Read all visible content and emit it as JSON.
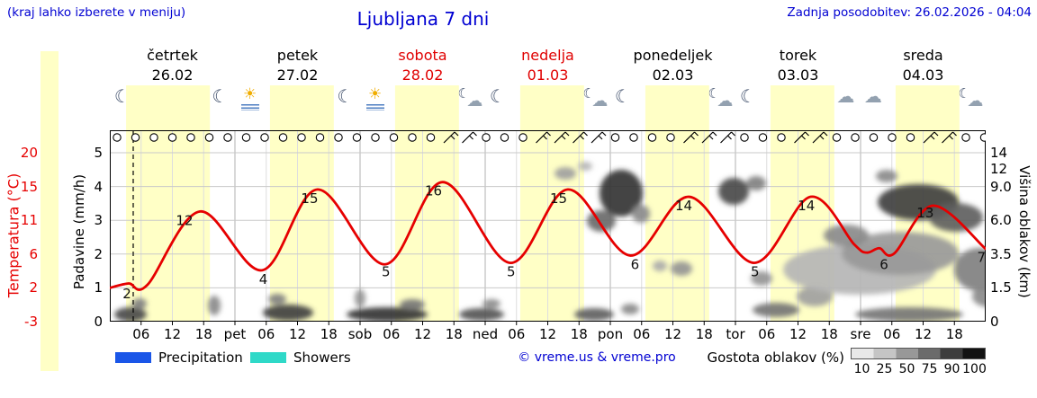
{
  "header": {
    "hint": "(kraj lahko izberete v meniju)",
    "title": "Ljubljana 7 dni",
    "updated": "Zadnja posodobitev: 26.02.2026 - 04:04"
  },
  "axes": {
    "left_temp": {
      "title": "Temperatura (°C)",
      "ticks": [
        "20",
        "15",
        "11",
        "6",
        "2",
        "-3"
      ]
    },
    "left_precip": {
      "title": "Padavine (mm/h)",
      "ticks": [
        "5",
        "4",
        "3",
        "2",
        "1",
        "0"
      ]
    },
    "right_cloud": {
      "title": "Višina oblakov (km)",
      "ticks": [
        "14",
        "12",
        "9.0",
        "6.0",
        "3.5",
        "1.5",
        "0"
      ]
    }
  },
  "days": [
    {
      "name": "četrtek",
      "date": "26.02",
      "highlight": false
    },
    {
      "name": "petek",
      "date": "27.02",
      "highlight": false
    },
    {
      "name": "sobota",
      "date": "28.02",
      "highlight": true
    },
    {
      "name": "nedelja",
      "date": "01.03",
      "highlight": true
    },
    {
      "name": "ponedeljek",
      "date": "02.03",
      "highlight": false
    },
    {
      "name": "torek",
      "date": "03.03",
      "highlight": false
    },
    {
      "name": "sreda",
      "date": "04.03",
      "highlight": false
    }
  ],
  "x_ticks": [
    {
      "t": 0.25,
      "label": "06"
    },
    {
      "t": 0.5,
      "label": "12"
    },
    {
      "t": 0.75,
      "label": "18"
    },
    {
      "t": 1,
      "label": "pet"
    },
    {
      "t": 1.25,
      "label": "06"
    },
    {
      "t": 1.5,
      "label": "12"
    },
    {
      "t": 1.75,
      "label": "18"
    },
    {
      "t": 2,
      "label": "sob"
    },
    {
      "t": 2.25,
      "label": "06"
    },
    {
      "t": 2.5,
      "label": "12"
    },
    {
      "t": 2.75,
      "label": "18"
    },
    {
      "t": 3,
      "label": "ned"
    },
    {
      "t": 3.25,
      "label": "06"
    },
    {
      "t": 3.5,
      "label": "12"
    },
    {
      "t": 3.75,
      "label": "18"
    },
    {
      "t": 4,
      "label": "pon"
    },
    {
      "t": 4.25,
      "label": "06"
    },
    {
      "t": 4.5,
      "label": "12"
    },
    {
      "t": 4.75,
      "label": "18"
    },
    {
      "t": 5,
      "label": "tor"
    },
    {
      "t": 5.25,
      "label": "06"
    },
    {
      "t": 5.5,
      "label": "12"
    },
    {
      "t": 5.75,
      "label": "18"
    },
    {
      "t": 6,
      "label": "sre"
    },
    {
      "t": 6.25,
      "label": "06"
    },
    {
      "t": 6.5,
      "label": "12"
    },
    {
      "t": 6.75,
      "label": "18"
    }
  ],
  "legend": {
    "precipitation": "Precipitation",
    "showers": "Showers",
    "credit": "© vreme.us & vreme.pro",
    "cloud_density": "Gostota oblakov (%)",
    "density_ticks": [
      "10",
      "25",
      "50",
      "75",
      "90",
      "100"
    ],
    "density_colors": [
      "#e8e8e8",
      "#c5c5c5",
      "#989898",
      "#6b6b6b",
      "#3d3d3d",
      "#121212"
    ]
  },
  "colors": {
    "header_text": "#0000d2",
    "temp_curve": "#e60000",
    "weekend": "#e00000",
    "day_band": "#ffffc6",
    "precipitation": "#1a56e8",
    "showers": "#2fd9c8"
  },
  "icon_glyphs": {
    "moon": "☾",
    "sun": "☀",
    "cloud": "☁"
  },
  "chart_data": {
    "type": "line",
    "title": "Ljubljana 7 dni",
    "x_unit": "days (0 = čet 26.02 00:00 … 7 = sre 04.03 24:00)",
    "temp_axis_range": [
      -3,
      20
    ],
    "precip_axis_range": [
      0,
      5
    ],
    "cloud_height_km_ticks": [
      0,
      1.5,
      3.5,
      6.0,
      9.0,
      12,
      14
    ],
    "now_t": 0.187,
    "temperature_c": {
      "points": [
        [
          0,
          1.6
        ],
        [
          0.15,
          2.2
        ],
        [
          0.3,
          2.0
        ],
        [
          0.72,
          12
        ],
        [
          1.22,
          4.0
        ],
        [
          1.66,
          15
        ],
        [
          2.2,
          4.8
        ],
        [
          2.66,
          16
        ],
        [
          3.2,
          5.0
        ],
        [
          3.66,
          15
        ],
        [
          4.16,
          6.0
        ],
        [
          4.63,
          14
        ],
        [
          5.15,
          5.0
        ],
        [
          5.6,
          14
        ],
        [
          5.95,
          7.5
        ],
        [
          6.05,
          6.4
        ],
        [
          6.15,
          7.0
        ],
        [
          6.27,
          6.3
        ],
        [
          6.58,
          12.8
        ],
        [
          7,
          6.9
        ]
      ]
    },
    "temp_labels": [
      [
        0.18,
        2
      ],
      [
        0.64,
        12
      ],
      [
        1.27,
        4
      ],
      [
        1.64,
        15
      ],
      [
        2.25,
        5
      ],
      [
        2.63,
        16
      ],
      [
        3.25,
        5
      ],
      [
        3.63,
        15
      ],
      [
        4.24,
        6
      ],
      [
        4.63,
        14
      ],
      [
        5.2,
        5
      ],
      [
        5.61,
        14
      ],
      [
        6.23,
        6
      ],
      [
        6.56,
        13
      ],
      [
        7,
        7
      ]
    ],
    "daylight_bands": [
      [
        0.13,
        0.8
      ],
      [
        1.28,
        1.79
      ],
      [
        2.28,
        2.79
      ],
      [
        3.28,
        3.79
      ],
      [
        4.28,
        4.79
      ],
      [
        5.28,
        5.79
      ],
      [
        6.28,
        6.79
      ]
    ],
    "weather_icons": [
      {
        "t": 0.1,
        "type": "moon"
      },
      {
        "t": 0.38,
        "type": "sunfog"
      },
      {
        "t": 0.62,
        "type": "sun"
      },
      {
        "t": 0.88,
        "type": "moon"
      },
      {
        "t": 1.12,
        "type": "sunfog"
      },
      {
        "t": 1.38,
        "type": "sunfog"
      },
      {
        "t": 1.62,
        "type": "sun"
      },
      {
        "t": 1.88,
        "type": "moon"
      },
      {
        "t": 2.12,
        "type": "sunfog"
      },
      {
        "t": 2.38,
        "type": "sunfog"
      },
      {
        "t": 2.62,
        "type": "sun"
      },
      {
        "t": 2.88,
        "type": "cloudmoon"
      },
      {
        "t": 3.1,
        "type": "moon"
      },
      {
        "t": 3.38,
        "type": "sunfog"
      },
      {
        "t": 3.62,
        "type": "cloudsun"
      },
      {
        "t": 3.88,
        "type": "cloudmoon"
      },
      {
        "t": 4.1,
        "type": "moon"
      },
      {
        "t": 4.38,
        "type": "cloudsun"
      },
      {
        "t": 4.62,
        "type": "cloudsun"
      },
      {
        "t": 4.88,
        "type": "cloudmoon"
      },
      {
        "t": 5.1,
        "type": "moon"
      },
      {
        "t": 5.38,
        "type": "cloudsun"
      },
      {
        "t": 5.62,
        "type": "cloud"
      },
      {
        "t": 5.88,
        "type": "cloud"
      },
      {
        "t": 6.1,
        "type": "cloud"
      },
      {
        "t": 6.38,
        "type": "cloudsun"
      },
      {
        "t": 6.62,
        "type": "cloud"
      },
      {
        "t": 6.88,
        "type": "cloudmoon"
      }
    ],
    "wind_symbols": [
      "calm",
      "calm",
      "calm",
      "calm",
      "calm",
      "calm",
      "calm",
      "calm",
      "calm",
      "calm",
      "calm",
      "calm",
      "calm",
      "calm",
      "calm",
      "calm",
      "calm",
      "calm",
      "barb",
      "barb",
      "calm",
      "calm",
      "calm",
      "barb",
      "barb",
      "barb",
      "barb",
      "calm",
      "calm",
      "calm",
      "calm",
      "barb",
      "barb",
      "barb",
      "calm",
      "calm",
      "calm",
      "barb",
      "barb",
      "calm",
      "calm",
      "calm",
      "calm",
      "calm",
      "barb",
      "barb",
      "calm",
      "calm"
    ],
    "clouds": [
      [
        23,
        255,
        18,
        8,
        75
      ],
      [
        33,
        243,
        8,
        6,
        50
      ],
      [
        116,
        245,
        7,
        11,
        45
      ],
      [
        198,
        253,
        28,
        9,
        80
      ],
      [
        186,
        238,
        10,
        6,
        50
      ],
      [
        278,
        237,
        6,
        10,
        40
      ],
      [
        308,
        255,
        45,
        8,
        85
      ],
      [
        336,
        244,
        14,
        6,
        55
      ],
      [
        413,
        255,
        25,
        7,
        70
      ],
      [
        424,
        243,
        10,
        5,
        45
      ],
      [
        538,
        255,
        22,
        7,
        65
      ],
      [
        578,
        249,
        10,
        6,
        45
      ],
      [
        506,
        98,
        12,
        7,
        35
      ],
      [
        528,
        90,
        8,
        5,
        25
      ],
      [
        568,
        120,
        24,
        26,
        85
      ],
      [
        546,
        151,
        16,
        12,
        60
      ],
      [
        590,
        143,
        10,
        10,
        45
      ],
      [
        635,
        204,
        12,
        8,
        40
      ],
      [
        611,
        201,
        8,
        6,
        30
      ],
      [
        693,
        118,
        17,
        15,
        75
      ],
      [
        718,
        109,
        11,
        8,
        50
      ],
      [
        724,
        215,
        12,
        8,
        40
      ],
      [
        740,
        250,
        26,
        8,
        55
      ],
      [
        783,
        235,
        20,
        11,
        35
      ],
      [
        833,
        205,
        85,
        28,
        25
      ],
      [
        878,
        187,
        65,
        24,
        38
      ],
      [
        818,
        167,
        25,
        12,
        45
      ],
      [
        898,
        130,
        45,
        20,
        80
      ],
      [
        940,
        147,
        30,
        16,
        65
      ],
      [
        966,
        205,
        28,
        24,
        50
      ],
      [
        888,
        255,
        60,
        8,
        55
      ],
      [
        863,
        101,
        12,
        7,
        45
      ],
      [
        978,
        235,
        20,
        12,
        45
      ]
    ]
  }
}
